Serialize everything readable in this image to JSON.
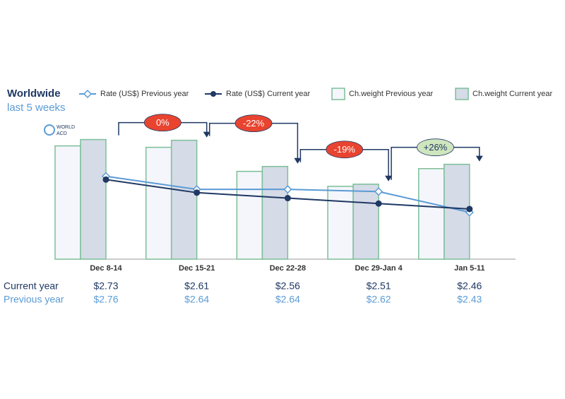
{
  "chart_data": {
    "type": "bar-line",
    "title": "Worldwide",
    "subtitle": "last 5 weeks",
    "logo": [
      "WORLD",
      "ACD"
    ],
    "categories": [
      "Dec 8-14",
      "Dec 15-21",
      "Dec 22-28",
      "Dec 29-Jan 4",
      "Jan 5-11"
    ],
    "ylim": [
      0,
      134
    ],
    "y2lim": [
      2.0,
      3.47
    ],
    "series": [
      {
        "name": "Rate (US$) Previous year",
        "table_label": "Previous year",
        "kind": "line",
        "axis": "y2",
        "color": "#5b9bd5",
        "marker": "open-diamond",
        "values": [
          2.76,
          2.64,
          2.64,
          2.62,
          2.43
        ],
        "value_labels": [
          "$2.76",
          "$2.64",
          "$2.64",
          "$2.62",
          "$2.43"
        ]
      },
      {
        "name": "Rate (US$) Current year",
        "table_label": "Current year",
        "kind": "line",
        "axis": "y2",
        "color": "#1f3864",
        "marker": "dot",
        "values": [
          2.73,
          2.61,
          2.56,
          2.51,
          2.46
        ],
        "value_labels": [
          "$2.73",
          "$2.61",
          "$2.56",
          "$2.51",
          "$2.46"
        ]
      },
      {
        "name": "Ch.weight Previous year",
        "kind": "bar",
        "color": "#f4f6fb",
        "edge": "#7cbf98",
        "values": [
          94.7,
          93.5,
          73.4,
          60.9,
          75.7
        ]
      },
      {
        "name": "Ch.weight Current year",
        "kind": "bar",
        "color": "#d5dbe7",
        "edge": "#7cbf98",
        "values": [
          100,
          99.4,
          77.5,
          62.7,
          79.3
        ]
      }
    ],
    "changes": [
      {
        "label": "0%",
        "value": 0,
        "color": "#e8442f",
        "text_color": "#ffffff"
      },
      {
        "label": "-22%",
        "value": -22,
        "color": "#e8442f",
        "text_color": "#ffffff"
      },
      {
        "label": "-19%",
        "value": -19,
        "color": "#e8442f",
        "text_color": "#ffffff"
      },
      {
        "label": "+26%",
        "value": 26,
        "color": "#cfe5bd",
        "text_color": "#1f3864"
      }
    ]
  }
}
